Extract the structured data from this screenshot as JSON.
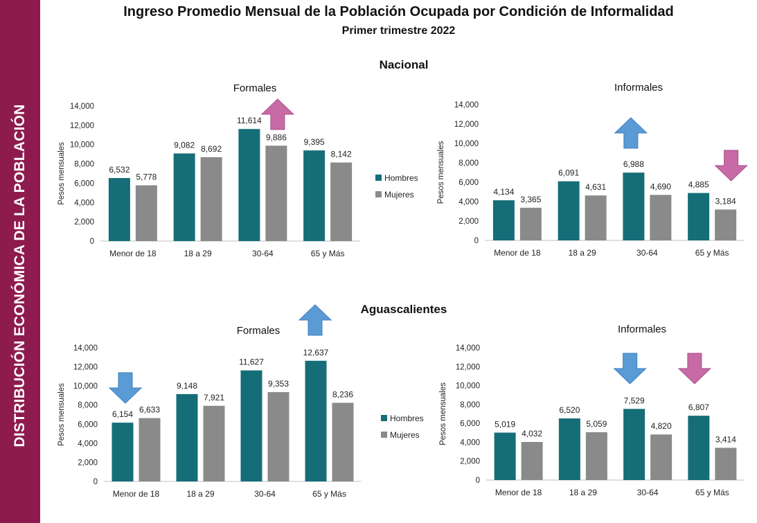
{
  "side_label": "DISTRIBUCIÓN ECONÓMICA DE LA POBLACIÓN",
  "title": "Ingreso Promedio Mensual de la Población Ocupada por Condición de Informalidad",
  "subtitle": "Primer trimestre 2022",
  "sections": {
    "top": "Nacional",
    "bottom": "Aguascalientes"
  },
  "colors": {
    "band": "#8e1b4e",
    "hombres": "#156e77",
    "mujeres": "#8a8a8a",
    "arrow_up": "#c76aa5",
    "arrow_blue": "#5b9bd5",
    "arrow_pink": "#c76aa5"
  },
  "chart_data": [
    {
      "type": "bar",
      "section": "Nacional",
      "title": "Formales",
      "categories": [
        "Menor de 18",
        "18 a 29",
        "30-64",
        "65 y Más"
      ],
      "series": [
        {
          "name": "Hombres",
          "values": [
            6532,
            9082,
            11614,
            9395
          ],
          "labels": [
            "6,532",
            "9,082",
            "11,614",
            "9,395"
          ]
        },
        {
          "name": "Mujeres",
          "values": [
            5778,
            8692,
            9886,
            8142
          ],
          "labels": [
            "5,778",
            "8,692",
            "9,886",
            "8,142"
          ]
        }
      ],
      "ylabel": "Pesos mensuales",
      "ylim": [
        0,
        14000
      ],
      "yticks": [
        "0",
        "2,000",
        "4,000",
        "6,000",
        "8,000",
        "10,000",
        "12,000",
        "14,000"
      ],
      "legend": "right",
      "arrow": {
        "category": "30-64",
        "direction": "up",
        "color": "#c76aa5"
      }
    },
    {
      "type": "bar",
      "section": "Nacional",
      "title": "Informales",
      "categories": [
        "Menor de 18",
        "18 a 29",
        "30-64",
        "65 y Más"
      ],
      "series": [
        {
          "name": "Hombres",
          "values": [
            4134,
            6091,
            6988,
            4885
          ],
          "labels": [
            "4,134",
            "6,091",
            "6,988",
            "4,885"
          ]
        },
        {
          "name": "Mujeres",
          "values": [
            3365,
            4631,
            4690,
            3184
          ],
          "labels": [
            "3,365",
            "4,631",
            "4,690",
            "3,184"
          ]
        }
      ],
      "ylabel": "Pesos mensuales",
      "ylim": [
        0,
        14000
      ],
      "yticks": [
        "0",
        "2,000",
        "4,000",
        "6,000",
        "8,000",
        "10,000",
        "12,000",
        "14,000"
      ],
      "arrows": [
        {
          "category": "30-64",
          "direction": "up",
          "color": "#5b9bd5"
        },
        {
          "category": "65 y Más",
          "direction": "down",
          "color": "#c76aa5"
        }
      ]
    },
    {
      "type": "bar",
      "section": "Aguascalientes",
      "title": "Formales",
      "categories": [
        "Menor de 18",
        "18 a 29",
        "30-64",
        "65 y Más"
      ],
      "series": [
        {
          "name": "Hombres",
          "values": [
            6154,
            9148,
            11627,
            12637
          ],
          "labels": [
            "6,154",
            "9,148",
            "11,627",
            "12,637"
          ]
        },
        {
          "name": "Mujeres",
          "values": [
            6633,
            7921,
            9353,
            8236
          ],
          "labels": [
            "6,633",
            "7,921",
            "9,353",
            "8,236"
          ]
        }
      ],
      "ylabel": "Pesos mensuales",
      "ylim": [
        0,
        14000
      ],
      "yticks": [
        "0",
        "2,000",
        "4,000",
        "6,000",
        "8,000",
        "10,000",
        "12,000",
        "14,000"
      ],
      "legend": "right",
      "arrows": [
        {
          "category": "Menor de 18",
          "direction": "down",
          "color": "#5b9bd5"
        },
        {
          "category": "65 y Más",
          "direction": "up",
          "color": "#5b9bd5"
        }
      ]
    },
    {
      "type": "bar",
      "section": "Aguascalientes",
      "title": "Informales",
      "categories": [
        "Menor de 18",
        "18 a 29",
        "30-64",
        "65 y Más"
      ],
      "series": [
        {
          "name": "Hombres",
          "values": [
            5019,
            6520,
            7529,
            6807
          ],
          "labels": [
            "5,019",
            "6,520",
            "7,529",
            "6,807"
          ]
        },
        {
          "name": "Mujeres",
          "values": [
            4032,
            5059,
            4820,
            3414
          ],
          "labels": [
            "4,032",
            "5,059",
            "4,820",
            "3,414"
          ]
        }
      ],
      "ylabel": "Pesos mensuales",
      "ylim": [
        0,
        14000
      ],
      "yticks": [
        "0",
        "2,000",
        "4,000",
        "6,000",
        "8,000",
        "10,000",
        "12,000",
        "14,000"
      ],
      "arrows": [
        {
          "category": "30-64",
          "direction": "down",
          "color": "#5b9bd5"
        },
        {
          "category": "65 y Más",
          "direction": "down",
          "color": "#c76aa5"
        }
      ]
    }
  ]
}
